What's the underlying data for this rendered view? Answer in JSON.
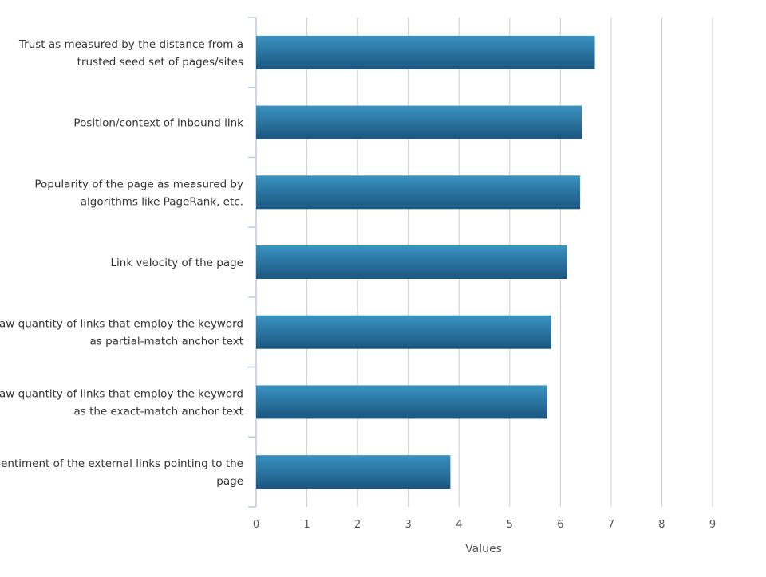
{
  "chart_data": {
    "type": "bar",
    "orientation": "horizontal",
    "categories": [
      "Trust as measured by the distance from a trusted seed set of pages/sites",
      "Position/context of inbound link",
      "Popularity of the page as measured by algorithms like PageRank, etc.",
      "Link velocity of the page",
      "Raw quantity of links that employ the keyword as partial-match anchor text",
      "Raw quantity of links that employ the keyword as the exact-match anchor text",
      "Sentiment of the external links pointing to the page"
    ],
    "category_label_lines": [
      [
        "Trust as measured by the distance from a",
        "trusted seed set of pages/sites"
      ],
      [
        "Position/context of inbound link"
      ],
      [
        "Popularity of the page as measured by",
        "algorithms like PageRank, etc."
      ],
      [
        "Link velocity of the page"
      ],
      [
        "Raw quantity of links that employ the keyword",
        "as partial-match anchor text"
      ],
      [
        "Raw quantity of links that employ the keyword",
        "as the exact-match anchor text"
      ],
      [
        "Sentiment of the external links pointing to the",
        "page"
      ]
    ],
    "values": [
      6.68,
      6.42,
      6.39,
      6.13,
      5.82,
      5.74,
      3.83
    ],
    "xlabel": "Values",
    "ylabel": "",
    "xlim": [
      0,
      9
    ],
    "xticks": [
      "0",
      "1",
      "2",
      "3",
      "4",
      "5",
      "6",
      "7",
      "8",
      "9"
    ],
    "grid": true,
    "legend": "none",
    "colors": {
      "bar_top": "#3a93c0",
      "bar_bottom": "#1a5680",
      "grid": "#cccccc",
      "axis": "#b9cde0",
      "text": "#333333",
      "tick_text": "#555555"
    }
  }
}
